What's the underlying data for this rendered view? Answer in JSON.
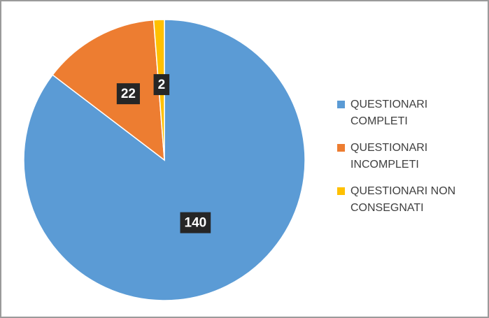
{
  "chart_data": {
    "type": "pie",
    "categories": [
      "QUESTIONARI COMPLETI",
      "QUESTIONARI INCOMPLETI",
      "QUESTIONARI NON CONSEGNATI"
    ],
    "values": [
      140,
      22,
      2
    ],
    "colors": [
      "#5b9bd5",
      "#ed7d31",
      "#ffc000"
    ],
    "legend": "right"
  }
}
